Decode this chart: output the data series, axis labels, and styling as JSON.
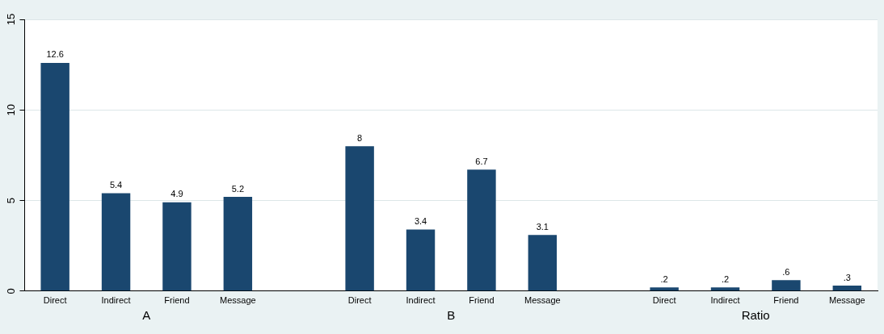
{
  "chart_data": {
    "type": "bar",
    "categories": [
      "Direct",
      "Indirect",
      "Friend",
      "Message",
      null,
      "Direct",
      "Indirect",
      "Friend",
      "Message",
      null,
      "Direct",
      "Indirect",
      "Friend",
      "Message"
    ],
    "values": [
      12.6,
      5.4,
      4.9,
      5.2,
      null,
      8,
      3.4,
      6.7,
      3.1,
      null,
      0.2,
      0.2,
      0.6,
      0.3
    ],
    "value_labels": [
      "12.6",
      "5.4",
      "4.9",
      "5.2",
      null,
      "8",
      "3.4",
      "6.7",
      "3.1",
      null,
      ".2",
      ".2",
      ".6",
      ".3"
    ],
    "color": "#1a476f",
    "ylim": [
      0,
      15
    ],
    "yticks": [
      0,
      5,
      10,
      15
    ],
    "grid": "y",
    "annotations": [
      "A",
      "B",
      "Ratio"
    ]
  }
}
